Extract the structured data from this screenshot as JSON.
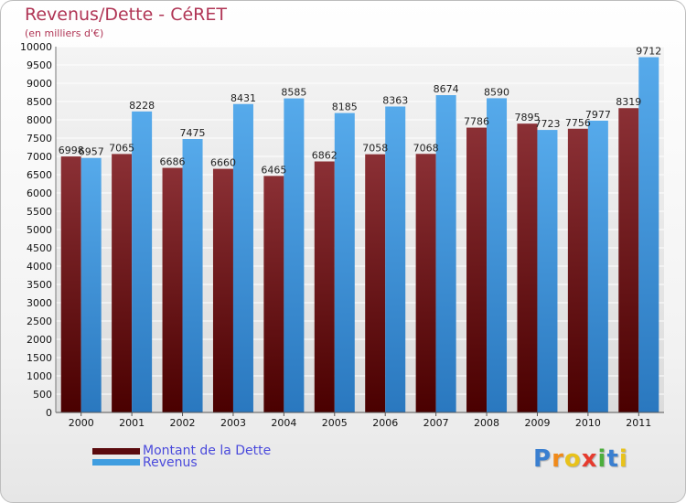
{
  "header": {
    "title": "Revenus/Dette - CéRET",
    "subtitle": "(en milliers d'€)"
  },
  "chart_data": {
    "type": "bar",
    "categories": [
      "2000",
      "2001",
      "2002",
      "2003",
      "2004",
      "2005",
      "2006",
      "2007",
      "2008",
      "2009",
      "2010",
      "2011"
    ],
    "series": [
      {
        "name": "Montant de la Dette",
        "color": "#7a1f25",
        "values": [
          6998,
          7065,
          6686,
          6660,
          6465,
          6862,
          7058,
          7068,
          7786,
          7895,
          7756,
          8319
        ],
        "labels": [
          "6998",
          "7065",
          "6686",
          "6660",
          "6465",
          "6862",
          "7058",
          "7068",
          "7786",
          "7895",
          "7756",
          "8319"
        ]
      },
      {
        "name": "Revenus",
        "color": "#3f9de0",
        "values": [
          6957,
          8228,
          7475,
          8431,
          8585,
          8185,
          8363,
          8674,
          8590,
          7723,
          7977,
          9712
        ],
        "labels": [
          "6957",
          "8228",
          "7475",
          "8431",
          "8585",
          "8185",
          "8363",
          "8674",
          "8590",
          "7723",
          "7977",
          "9712"
        ]
      }
    ],
    "title": "Revenus/Dette - CéRET",
    "ylabel": "(en milliers d'€)",
    "ylim": [
      0,
      10000
    ],
    "ytick_step": 500,
    "grid": true,
    "legend_position": "bottom-left"
  },
  "legend": {
    "items": [
      {
        "label": "Montant de la Dette",
        "color": "#7a1f25"
      },
      {
        "label": "Revenus",
        "color": "#3f9de0"
      }
    ]
  },
  "brand": {
    "letters": [
      "P",
      "r",
      "o",
      "x",
      "i",
      "t",
      "i"
    ],
    "colors": [
      "#3a7fd0",
      "#f08a1a",
      "#e8c21b",
      "#e63b2e",
      "#4cae3c",
      "#3a7fd0",
      "#e8c21b"
    ]
  }
}
